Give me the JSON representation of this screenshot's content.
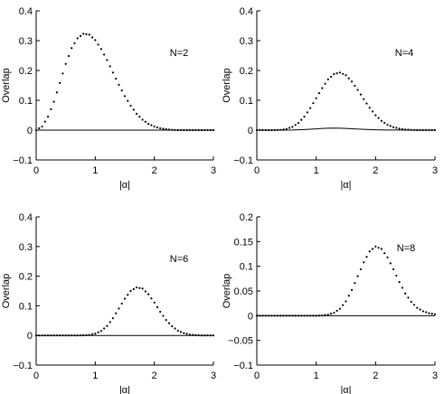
{
  "chart_data": [
    {
      "type": "line",
      "label": "N=2",
      "xlabel": "|α|",
      "ylabel": "Overlap",
      "xlim": [
        0,
        3
      ],
      "ylim": [
        -0.1,
        0.4
      ],
      "xticks": [
        0,
        1,
        2,
        3
      ],
      "yticks": [
        -0.1,
        0,
        0.1,
        0.2,
        0.3,
        0.4
      ],
      "ytick_labels": [
        "−0.1",
        "0",
        "0.1",
        "0.2",
        "0.3",
        "0.4"
      ],
      "xtick_labels": [
        "0",
        "1",
        "2",
        "3"
      ],
      "series": [
        {
          "style": "dotted",
          "x": [
            0.0,
            0.1,
            0.2,
            0.3,
            0.4,
            0.5,
            0.6,
            0.7,
            0.8,
            0.9,
            1.0,
            1.1,
            1.2,
            1.3,
            1.4,
            1.5,
            1.6,
            1.7,
            1.8,
            1.9,
            2.0,
            2.1,
            2.2,
            2.3,
            2.4,
            2.5,
            2.6,
            2.7,
            2.8,
            2.9,
            3.0
          ],
          "y": [
            0.0,
            0.012,
            0.045,
            0.095,
            0.158,
            0.222,
            0.275,
            0.308,
            0.323,
            0.32,
            0.302,
            0.272,
            0.235,
            0.193,
            0.152,
            0.114,
            0.082,
            0.055,
            0.035,
            0.021,
            0.012,
            0.006,
            0.003,
            0.001,
            0.0,
            0.0,
            0.0,
            0.0,
            0.0,
            0.0,
            0.0
          ]
        },
        {
          "style": "solid",
          "x": [
            0,
            3
          ],
          "y": [
            0,
            0
          ]
        }
      ]
    },
    {
      "type": "line",
      "label": "N=4",
      "xlabel": "|α|",
      "ylabel": "Overlap",
      "xlim": [
        0,
        3
      ],
      "ylim": [
        -0.1,
        0.4
      ],
      "xticks": [
        0,
        1,
        2,
        3
      ],
      "yticks": [
        -0.1,
        0,
        0.1,
        0.2,
        0.3,
        0.4
      ],
      "ytick_labels": [
        "−0.1",
        "0",
        "0.1",
        "0.2",
        "0.3",
        "0.4"
      ],
      "xtick_labels": [
        "0",
        "1",
        "2",
        "3"
      ],
      "series": [
        {
          "style": "dotted",
          "x": [
            0.0,
            0.1,
            0.2,
            0.3,
            0.4,
            0.5,
            0.6,
            0.7,
            0.8,
            0.9,
            1.0,
            1.1,
            1.2,
            1.3,
            1.4,
            1.5,
            1.6,
            1.7,
            1.8,
            1.9,
            2.0,
            2.1,
            2.2,
            2.3,
            2.4,
            2.5,
            2.6,
            2.7,
            2.8,
            2.9,
            3.0
          ],
          "y": [
            0.0,
            0.0,
            0.0,
            0.0,
            0.001,
            0.004,
            0.011,
            0.024,
            0.045,
            0.074,
            0.107,
            0.141,
            0.17,
            0.188,
            0.193,
            0.184,
            0.163,
            0.135,
            0.104,
            0.075,
            0.05,
            0.031,
            0.018,
            0.01,
            0.005,
            0.002,
            0.001,
            0.0,
            0.0,
            0.0,
            0.0
          ]
        },
        {
          "style": "solid",
          "x": [
            0.0,
            0.2,
            0.4,
            0.6,
            0.8,
            1.0,
            1.1,
            1.2,
            1.3,
            1.4,
            1.5,
            1.6,
            1.8,
            2.0,
            2.2,
            2.4,
            2.6,
            3.0
          ],
          "y": [
            0.0,
            0.0,
            0.0,
            0.0005,
            0.002,
            0.004,
            0.0055,
            0.0065,
            0.007,
            0.0065,
            0.0055,
            0.0045,
            0.0025,
            0.0012,
            0.0005,
            0.0002,
            0.0,
            0.0
          ]
        }
      ]
    },
    {
      "type": "line",
      "label": "N=6",
      "xlabel": "|α|",
      "ylabel": "Overlap",
      "xlim": [
        0,
        3
      ],
      "ylim": [
        -0.1,
        0.4
      ],
      "xticks": [
        0,
        1,
        2,
        3
      ],
      "yticks": [
        -0.1,
        0,
        0.1,
        0.2,
        0.3,
        0.4
      ],
      "ytick_labels": [
        "−0.1",
        "0",
        "0.1",
        "0.2",
        "0.3",
        "0.4"
      ],
      "xtick_labels": [
        "0",
        "1",
        "2",
        "3"
      ],
      "series": [
        {
          "style": "dotted",
          "x": [
            0.0,
            0.1,
            0.2,
            0.3,
            0.4,
            0.5,
            0.6,
            0.7,
            0.8,
            0.9,
            1.0,
            1.1,
            1.2,
            1.3,
            1.4,
            1.5,
            1.6,
            1.7,
            1.8,
            1.9,
            2.0,
            2.1,
            2.2,
            2.3,
            2.4,
            2.5,
            2.6,
            2.7,
            2.8,
            2.9,
            3.0
          ],
          "y": [
            0.0,
            0.0,
            0.0,
            0.0,
            0.0,
            0.0,
            0.0,
            0.0,
            0.0005,
            0.002,
            0.006,
            0.015,
            0.032,
            0.058,
            0.091,
            0.124,
            0.15,
            0.162,
            0.158,
            0.139,
            0.111,
            0.08,
            0.052,
            0.031,
            0.016,
            0.008,
            0.003,
            0.001,
            0.0,
            0.0,
            0.0
          ]
        },
        {
          "style": "solid",
          "x": [
            0,
            3
          ],
          "y": [
            0,
            0
          ]
        }
      ]
    },
    {
      "type": "line",
      "label": "N=8",
      "xlabel": "|α|",
      "ylabel": "Overlap",
      "xlim": [
        0,
        3
      ],
      "ylim": [
        -0.1,
        0.2
      ],
      "xticks": [
        0,
        1,
        2,
        3
      ],
      "yticks": [
        -0.1,
        -0.05,
        0,
        0.05,
        0.1,
        0.15,
        0.2
      ],
      "ytick_labels": [
        "−0.1",
        "−0.05",
        "0",
        "0.05",
        "0.1",
        "0.15",
        "0.2"
      ],
      "xtick_labels": [
        "0",
        "1",
        "2",
        "3"
      ],
      "series": [
        {
          "style": "dotted",
          "x": [
            0.0,
            0.1,
            0.2,
            0.3,
            0.4,
            0.5,
            0.6,
            0.7,
            0.8,
            0.9,
            1.0,
            1.1,
            1.2,
            1.3,
            1.4,
            1.5,
            1.6,
            1.7,
            1.8,
            1.9,
            2.0,
            2.1,
            2.2,
            2.3,
            2.4,
            2.5,
            2.6,
            2.7,
            2.8,
            2.9,
            3.0
          ],
          "y": [
            0.0,
            0.0,
            0.0,
            0.0,
            0.0,
            0.0,
            0.0,
            0.0,
            0.0,
            0.0,
            0.0,
            0.0005,
            0.002,
            0.006,
            0.014,
            0.029,
            0.052,
            0.08,
            0.108,
            0.13,
            0.14,
            0.135,
            0.118,
            0.094,
            0.068,
            0.045,
            0.028,
            0.016,
            0.009,
            0.005,
            0.003
          ]
        },
        {
          "style": "solid",
          "x": [
            0,
            3
          ],
          "y": [
            0,
            0
          ]
        }
      ]
    }
  ]
}
